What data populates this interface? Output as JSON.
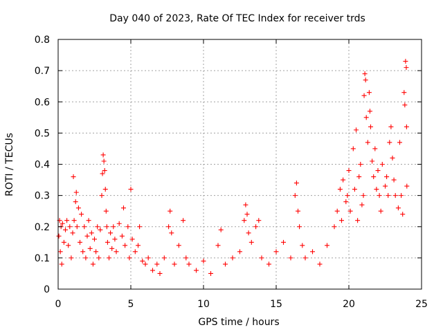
{
  "chart_data": {
    "type": "scatter",
    "title": "Day 040 of 2023, Rate Of TEC Index for receiver trds",
    "xlabel": "GPS time / hours",
    "ylabel": "ROTI / TECUs",
    "xlim": [
      0,
      25
    ],
    "ylim": [
      0,
      0.8
    ],
    "xticks": [
      0,
      5,
      10,
      15,
      20,
      25
    ],
    "yticks": [
      0,
      0.1,
      0.2,
      0.3,
      0.4,
      0.5,
      0.6,
      0.7,
      0.8
    ],
    "grid": true,
    "marker": "+",
    "color": "#ff0000",
    "series": [
      {
        "points": [
          [
            0.05,
            0.17
          ],
          [
            0.1,
            0.22
          ],
          [
            0.15,
            0.12
          ],
          [
            0.2,
            0.2
          ],
          [
            0.25,
            0.08
          ],
          [
            0.3,
            0.21
          ],
          [
            0.4,
            0.15
          ],
          [
            0.5,
            0.19
          ],
          [
            0.6,
            0.22
          ],
          [
            0.7,
            0.14
          ],
          [
            0.8,
            0.2
          ],
          [
            0.9,
            0.1
          ],
          [
            1.0,
            0.18
          ],
          [
            1.05,
            0.36
          ],
          [
            1.1,
            0.22
          ],
          [
            1.2,
            0.28
          ],
          [
            1.25,
            0.31
          ],
          [
            1.3,
            0.2
          ],
          [
            1.4,
            0.26
          ],
          [
            1.5,
            0.15
          ],
          [
            1.6,
            0.24
          ],
          [
            1.7,
            0.12
          ],
          [
            1.8,
            0.2
          ],
          [
            1.9,
            0.1
          ],
          [
            2.0,
            0.17
          ],
          [
            2.1,
            0.22
          ],
          [
            2.2,
            0.13
          ],
          [
            2.3,
            0.18
          ],
          [
            2.4,
            0.08
          ],
          [
            2.5,
            0.16
          ],
          [
            2.6,
            0.12
          ],
          [
            2.7,
            0.2
          ],
          [
            2.8,
            0.1
          ],
          [
            2.9,
            0.19
          ],
          [
            3.0,
            0.3
          ],
          [
            3.05,
            0.37
          ],
          [
            3.1,
            0.43
          ],
          [
            3.15,
            0.41
          ],
          [
            3.2,
            0.38
          ],
          [
            3.25,
            0.32
          ],
          [
            3.3,
            0.25
          ],
          [
            3.35,
            0.2
          ],
          [
            3.4,
            0.15
          ],
          [
            3.5,
            0.1
          ],
          [
            3.6,
            0.18
          ],
          [
            3.7,
            0.13
          ],
          [
            3.8,
            0.2
          ],
          [
            3.9,
            0.16
          ],
          [
            4.0,
            0.12
          ],
          [
            4.2,
            0.21
          ],
          [
            4.4,
            0.17
          ],
          [
            4.5,
            0.26
          ],
          [
            4.6,
            0.14
          ],
          [
            4.8,
            0.2
          ],
          [
            4.9,
            0.1
          ],
          [
            5.0,
            0.32
          ],
          [
            5.1,
            0.16
          ],
          [
            5.3,
            0.12
          ],
          [
            5.5,
            0.14
          ],
          [
            5.6,
            0.2
          ],
          [
            5.8,
            0.09
          ],
          [
            6.0,
            0.08
          ],
          [
            6.2,
            0.1
          ],
          [
            6.5,
            0.06
          ],
          [
            6.8,
            0.08
          ],
          [
            7.0,
            0.05
          ],
          [
            7.3,
            0.1
          ],
          [
            7.6,
            0.2
          ],
          [
            7.7,
            0.25
          ],
          [
            7.8,
            0.18
          ],
          [
            8.0,
            0.08
          ],
          [
            8.3,
            0.14
          ],
          [
            8.6,
            0.22
          ],
          [
            8.8,
            0.1
          ],
          [
            9.0,
            0.08
          ],
          [
            9.5,
            0.06
          ],
          [
            10.0,
            0.09
          ],
          [
            10.5,
            0.05
          ],
          [
            11.0,
            0.14
          ],
          [
            11.2,
            0.19
          ],
          [
            11.5,
            0.08
          ],
          [
            12.0,
            0.1
          ],
          [
            12.5,
            0.12
          ],
          [
            12.8,
            0.22
          ],
          [
            12.9,
            0.27
          ],
          [
            13.0,
            0.24
          ],
          [
            13.1,
            0.18
          ],
          [
            13.3,
            0.15
          ],
          [
            13.6,
            0.2
          ],
          [
            13.8,
            0.22
          ],
          [
            14.0,
            0.1
          ],
          [
            14.5,
            0.08
          ],
          [
            15.0,
            0.12
          ],
          [
            15.5,
            0.15
          ],
          [
            16.0,
            0.1
          ],
          [
            16.3,
            0.3
          ],
          [
            16.4,
            0.34
          ],
          [
            16.5,
            0.25
          ],
          [
            16.6,
            0.2
          ],
          [
            16.8,
            0.14
          ],
          [
            17.0,
            0.1
          ],
          [
            17.5,
            0.12
          ],
          [
            18.0,
            0.08
          ],
          [
            18.5,
            0.14
          ],
          [
            19.0,
            0.2
          ],
          [
            19.2,
            0.25
          ],
          [
            19.4,
            0.32
          ],
          [
            19.5,
            0.22
          ],
          [
            19.6,
            0.35
          ],
          [
            19.8,
            0.28
          ],
          [
            19.9,
            0.3
          ],
          [
            20.0,
            0.38
          ],
          [
            20.1,
            0.25
          ],
          [
            20.3,
            0.45
          ],
          [
            20.4,
            0.32
          ],
          [
            20.5,
            0.51
          ],
          [
            20.6,
            0.22
          ],
          [
            20.7,
            0.36
          ],
          [
            20.8,
            0.4
          ],
          [
            20.9,
            0.27
          ],
          [
            21.0,
            0.3
          ],
          [
            21.05,
            0.62
          ],
          [
            21.1,
            0.69
          ],
          [
            21.15,
            0.67
          ],
          [
            21.2,
            0.55
          ],
          [
            21.3,
            0.47
          ],
          [
            21.4,
            0.63
          ],
          [
            21.45,
            0.57
          ],
          [
            21.5,
            0.52
          ],
          [
            21.6,
            0.41
          ],
          [
            21.7,
            0.36
          ],
          [
            21.8,
            0.45
          ],
          [
            21.9,
            0.32
          ],
          [
            22.0,
            0.38
          ],
          [
            22.1,
            0.3
          ],
          [
            22.2,
            0.25
          ],
          [
            22.3,
            0.4
          ],
          [
            22.5,
            0.33
          ],
          [
            22.6,
            0.36
          ],
          [
            22.7,
            0.3
          ],
          [
            22.8,
            0.47
          ],
          [
            22.9,
            0.52
          ],
          [
            23.0,
            0.42
          ],
          [
            23.1,
            0.35
          ],
          [
            23.2,
            0.3
          ],
          [
            23.4,
            0.26
          ],
          [
            23.5,
            0.47
          ],
          [
            23.6,
            0.3
          ],
          [
            23.7,
            0.24
          ],
          [
            23.8,
            0.63
          ],
          [
            23.85,
            0.59
          ],
          [
            23.9,
            0.73
          ],
          [
            23.95,
            0.71
          ],
          [
            23.97,
            0.52
          ],
          [
            23.99,
            0.33
          ]
        ]
      }
    ]
  }
}
